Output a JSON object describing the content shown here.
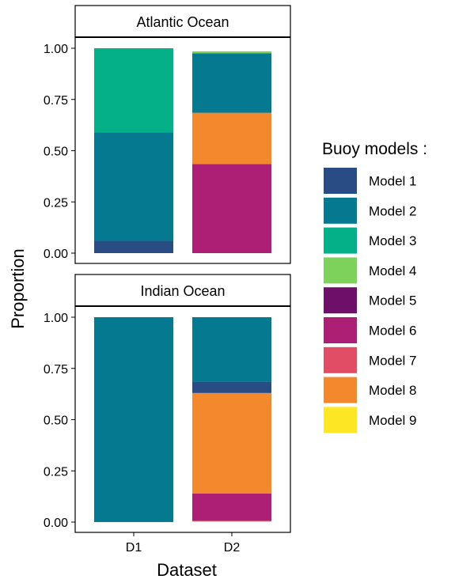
{
  "chart_data": {
    "type": "bar",
    "stacked": true,
    "ylabel": "Proportion",
    "xlabel": "Dataset",
    "ylim": [
      0,
      1
    ],
    "yticks": [
      "0.00",
      "0.25",
      "0.50",
      "0.75",
      "1.00"
    ],
    "categories": [
      "D1",
      "D2"
    ],
    "legend_title": "Buoy models :",
    "legend_position": "right",
    "models": [
      {
        "name": "Model 1",
        "color": "#2a4c85"
      },
      {
        "name": "Model 2",
        "color": "#04798f"
      },
      {
        "name": "Model 3",
        "color": "#03b087"
      },
      {
        "name": "Model 4",
        "color": "#7dd25b"
      },
      {
        "name": "Model 5",
        "color": "#6e0f6a"
      },
      {
        "name": "Model 6",
        "color": "#ac1f74"
      },
      {
        "name": "Model 7",
        "color": "#e24d66"
      },
      {
        "name": "Model 8",
        "color": "#f3882c"
      },
      {
        "name": "Model 9",
        "color": "#fde725"
      }
    ],
    "panels": [
      {
        "title": "Atlantic Ocean",
        "series": [
          {
            "name": "Model 1",
            "values": [
              0.06,
              0.0
            ]
          },
          {
            "name": "Model 2",
            "values": [
              0.53,
              0.29
            ]
          },
          {
            "name": "Model 3",
            "values": [
              0.41,
              0.0
            ]
          },
          {
            "name": "Model 4",
            "values": [
              0.0,
              0.01
            ]
          },
          {
            "name": "Model 5",
            "values": [
              0.0,
              0.0
            ]
          },
          {
            "name": "Model 6",
            "values": [
              0.0,
              0.435
            ]
          },
          {
            "name": "Model 7",
            "values": [
              0.0,
              0.0
            ]
          },
          {
            "name": "Model 8",
            "values": [
              0.0,
              0.25
            ]
          },
          {
            "name": "Model 9",
            "values": [
              0.0,
              0.0
            ]
          }
        ],
        "stack_order": [
          "Model 6",
          "Model 8",
          "Model 1",
          "Model 2",
          "Model 4"
        ],
        "stack_order_D1": [
          "Model 1",
          "Model 2",
          "Model 3"
        ]
      },
      {
        "title": "Indian Ocean",
        "series": [
          {
            "name": "Model 1",
            "values": [
              0.003,
              0.055
            ]
          },
          {
            "name": "Model 2",
            "values": [
              0.997,
              0.315
            ]
          },
          {
            "name": "Model 3",
            "values": [
              0.0,
              0.0
            ]
          },
          {
            "name": "Model 4",
            "values": [
              0.0,
              0.0
            ]
          },
          {
            "name": "Model 5",
            "values": [
              0.0,
              0.0
            ]
          },
          {
            "name": "Model 6",
            "values": [
              0.0,
              0.135
            ]
          },
          {
            "name": "Model 7",
            "values": [
              0.0,
              0.0
            ]
          },
          {
            "name": "Model 8",
            "values": [
              0.0,
              0.49
            ]
          },
          {
            "name": "Model 9",
            "values": [
              0.0,
              0.005
            ]
          }
        ],
        "stack_order": [
          "Model 9",
          "Model 6",
          "Model 8",
          "Model 1",
          "Model 2"
        ],
        "stack_order_D1": [
          "Model 1",
          "Model 2"
        ]
      }
    ]
  }
}
